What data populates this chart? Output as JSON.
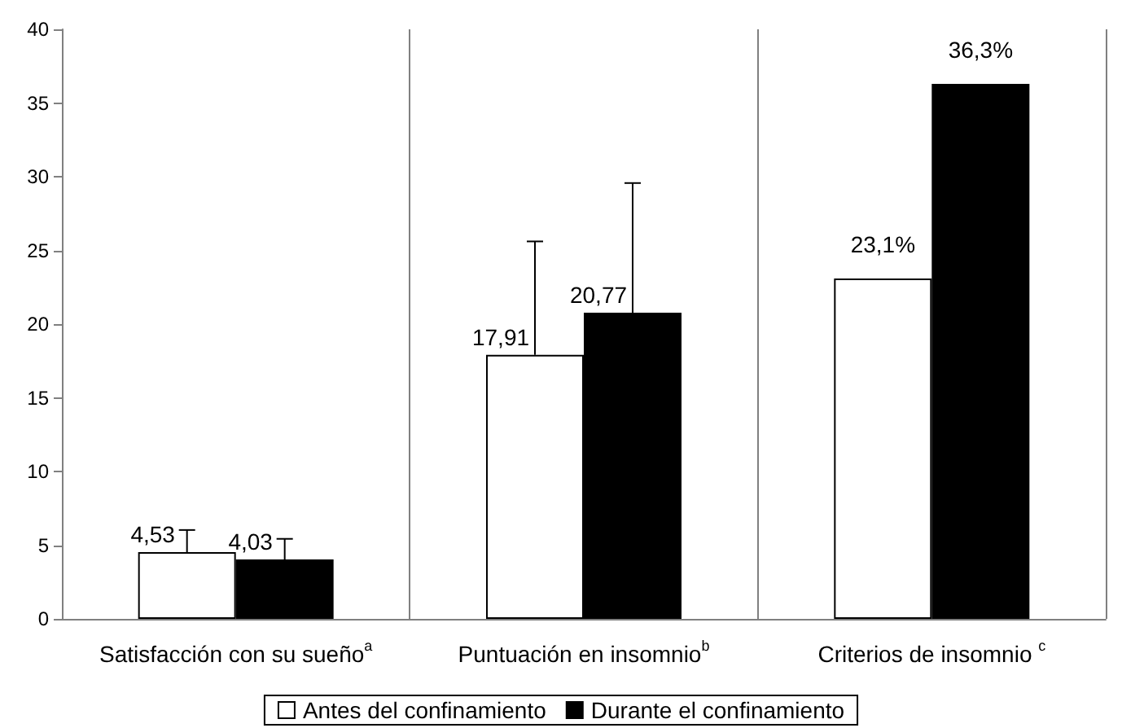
{
  "chart_data": {
    "type": "bar",
    "categories": [
      "Satisfacción con su sueño$^{a}$",
      "Puntuación en insomnio$^{b}$",
      "Criterios de insomnio $^{c}$"
    ],
    "series": [
      {
        "name": "Antes del confinamiento",
        "color": "#ffffff",
        "values": [
          4.53,
          17.91,
          23.1
        ],
        "errors": [
          1.5,
          7.7,
          null
        ],
        "value_labels": [
          "4,53",
          "17,91",
          "23,1%"
        ]
      },
      {
        "name": "Durante el confinamiento",
        "color": "#000000",
        "values": [
          4.03,
          20.77,
          36.3
        ],
        "errors": [
          1.4,
          8.8,
          null
        ],
        "value_labels": [
          "4,03",
          "20,77",
          "36,3%"
        ]
      }
    ],
    "ylim": [
      0,
      40
    ],
    "yticks": [
      0,
      5,
      10,
      15,
      20,
      25,
      30,
      35,
      40
    ],
    "grid": "x",
    "legend": "bottom"
  }
}
